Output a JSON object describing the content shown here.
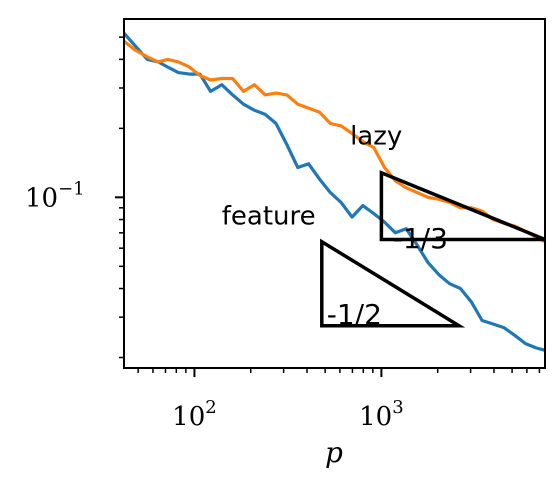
{
  "chart_data": {
    "type": "line",
    "xscale": "log",
    "yscale": "log",
    "xlabel": "p",
    "ylabel": "",
    "title": "",
    "xlim": [
      42,
      7500
    ],
    "ylim": [
      0.018,
      0.6
    ],
    "grid": false,
    "x_ticks": [
      {
        "value": 100,
        "base": "10",
        "exp": "2"
      },
      {
        "value": 1000,
        "base": "10",
        "exp": "3"
      }
    ],
    "y_ticks": [
      {
        "value": 0.1,
        "base": "10",
        "exp": "−1"
      }
    ],
    "series": [
      {
        "name": "",
        "color": "#1f77b4",
        "x": [
          42,
          48,
          56,
          64,
          72,
          82,
          94,
          107,
          122,
          140,
          160,
          183,
          209,
          239,
          273,
          312,
          357,
          408,
          467,
          533,
          609,
          696,
          795,
          909,
          1039,
          1188,
          1357,
          1551,
          1773,
          2027,
          2316,
          2647,
          3026,
          3458,
          3952,
          4517,
          5162,
          5900,
          6743,
          7500
        ],
        "y": [
          0.52,
          0.46,
          0.4,
          0.39,
          0.37,
          0.35,
          0.345,
          0.345,
          0.29,
          0.31,
          0.28,
          0.255,
          0.24,
          0.23,
          0.21,
          0.17,
          0.135,
          0.14,
          0.12,
          0.105,
          0.095,
          0.082,
          0.092,
          0.085,
          0.078,
          0.07,
          0.073,
          0.062,
          0.052,
          0.046,
          0.042,
          0.04,
          0.035,
          0.029,
          0.028,
          0.027,
          0.025,
          0.023,
          0.022,
          0.0215
        ]
      },
      {
        "name": "",
        "color": "#ff7f0e",
        "x": [
          42,
          48,
          56,
          64,
          72,
          82,
          94,
          107,
          122,
          140,
          160,
          183,
          209,
          239,
          273,
          312,
          357,
          408,
          467,
          533,
          609,
          696,
          795,
          909,
          1039,
          1188,
          1357,
          1551,
          1773,
          2027,
          2316,
          2647,
          3026,
          3458,
          3952,
          4517,
          5162,
          5900,
          6743,
          7500
        ],
        "y": [
          0.48,
          0.44,
          0.41,
          0.39,
          0.4,
          0.39,
          0.37,
          0.34,
          0.325,
          0.33,
          0.33,
          0.29,
          0.31,
          0.28,
          0.285,
          0.28,
          0.255,
          0.245,
          0.235,
          0.21,
          0.205,
          0.19,
          0.175,
          0.165,
          0.135,
          0.118,
          0.11,
          0.105,
          0.1,
          0.098,
          0.095,
          0.09,
          0.09,
          0.087,
          0.08,
          0.077,
          0.075,
          0.071,
          0.067,
          0.064
        ]
      }
    ],
    "annotations": [
      {
        "text": "lazy",
        "x": 680,
        "y": 0.17
      },
      {
        "text": "feature",
        "x": 140,
        "y": 0.076
      }
    ],
    "slope_triangles": [
      {
        "label": "-1/3",
        "x0": 1000,
        "x1": 7500,
        "y0": 0.128,
        "slope": -0.333,
        "label_x": 1150,
        "label_y": 0.06
      },
      {
        "label": "-1/2",
        "x0": 480,
        "x1": 2600,
        "y0": 0.064,
        "slope": -0.5,
        "label_x": 510,
        "label_y": 0.028
      }
    ]
  }
}
